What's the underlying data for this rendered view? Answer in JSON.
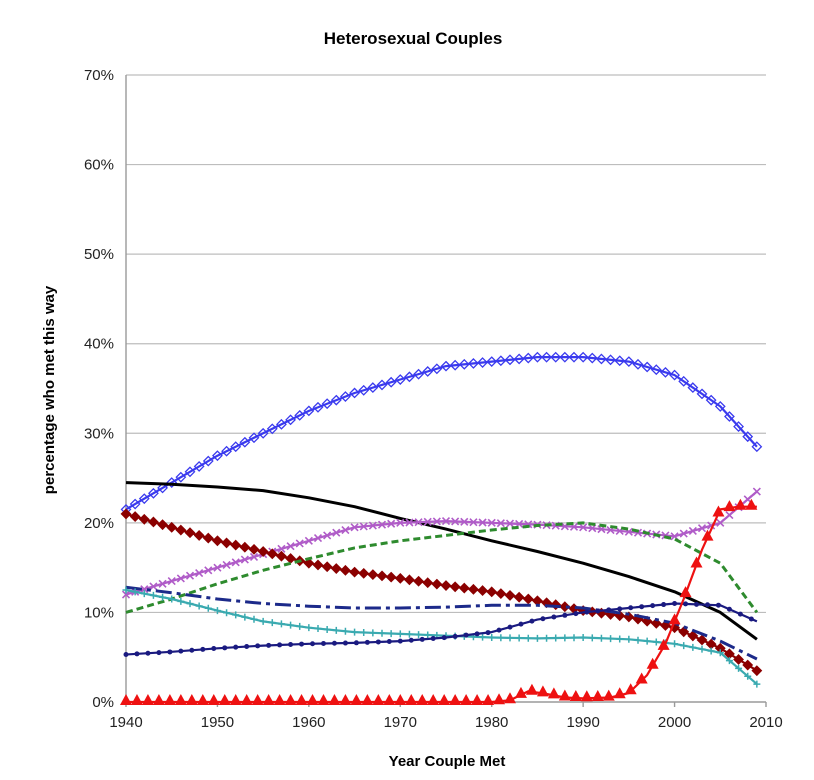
{
  "chart_data": {
    "type": "line",
    "title": "Heterosexual Couples",
    "xlabel": "Year Couple Met",
    "ylabel": "percentage who met this way",
    "xlim": [
      1940,
      2010
    ],
    "ylim": [
      0,
      70
    ],
    "xticks": [
      1940,
      1950,
      1960,
      1970,
      1980,
      1990,
      2000,
      2010
    ],
    "yticks": [
      0,
      10,
      20,
      30,
      40,
      50,
      60,
      70
    ],
    "ytick_labels": [
      "0%",
      "10%",
      "20%",
      "30%",
      "40%",
      "50%",
      "60%",
      "70%"
    ],
    "grid": true,
    "series": [
      {
        "id": "blue-diamond",
        "color": "#3a3aee",
        "style": "solid",
        "marker": "diamond",
        "x": [
          1940,
          1945,
          1950,
          1955,
          1960,
          1965,
          1970,
          1975,
          1980,
          1985,
          1990,
          1995,
          2000,
          2005,
          2009
        ],
        "y": [
          21.5,
          24.5,
          27.5,
          30.0,
          32.5,
          34.5,
          36.0,
          37.5,
          38.0,
          38.5,
          38.5,
          38.0,
          36.5,
          33.0,
          28.5
        ]
      },
      {
        "id": "black-solid",
        "color": "#000000",
        "style": "solid",
        "marker": "none",
        "x": [
          1940,
          1945,
          1950,
          1955,
          1960,
          1965,
          1970,
          1975,
          1980,
          1985,
          1990,
          1995,
          2000,
          2005,
          2009
        ],
        "y": [
          24.5,
          24.3,
          24.0,
          23.6,
          22.8,
          21.8,
          20.5,
          19.3,
          18.0,
          16.8,
          15.5,
          14.0,
          12.3,
          10.0,
          7.0
        ]
      },
      {
        "id": "magenta-x",
        "color": "#b05cc8",
        "style": "solid",
        "marker": "x",
        "x": [
          1940,
          1945,
          1950,
          1955,
          1960,
          1965,
          1970,
          1975,
          1980,
          1985,
          1990,
          1995,
          2000,
          2005,
          2009
        ],
        "y": [
          12.0,
          13.5,
          15.0,
          16.5,
          18.0,
          19.5,
          20.0,
          20.2,
          20.0,
          19.8,
          19.5,
          19.0,
          18.5,
          20.0,
          23.5
        ]
      },
      {
        "id": "dark-red-diamond",
        "color": "#8b0000",
        "style": "solid",
        "marker": "diamond",
        "x": [
          1940,
          1945,
          1950,
          1955,
          1960,
          1965,
          1970,
          1975,
          1980,
          1985,
          1990,
          1995,
          2000,
          2005,
          2009
        ],
        "y": [
          21.0,
          19.5,
          18.0,
          16.8,
          15.5,
          14.5,
          13.8,
          13.0,
          12.3,
          11.3,
          10.2,
          9.5,
          8.3,
          6.0,
          3.5
        ]
      },
      {
        "id": "green-dashed",
        "color": "#2e8b2e",
        "style": "dashed",
        "marker": "none",
        "x": [
          1940,
          1945,
          1950,
          1955,
          1960,
          1965,
          1970,
          1975,
          1980,
          1985,
          1990,
          1995,
          2000,
          2005,
          2009
        ],
        "y": [
          10.0,
          11.5,
          13.2,
          14.7,
          16.0,
          17.2,
          18.0,
          18.6,
          19.2,
          19.7,
          20.0,
          19.3,
          18.2,
          15.5,
          10.0
        ]
      },
      {
        "id": "navy-dashdot",
        "color": "#1c2a8a",
        "style": "dashdot",
        "marker": "none",
        "x": [
          1940,
          1945,
          1950,
          1955,
          1960,
          1965,
          1970,
          1975,
          1980,
          1985,
          1990,
          1995,
          2000,
          2005,
          2009
        ],
        "y": [
          12.8,
          12.2,
          11.5,
          11.0,
          10.7,
          10.5,
          10.5,
          10.6,
          10.8,
          10.8,
          10.5,
          9.8,
          8.8,
          6.8,
          4.8
        ]
      },
      {
        "id": "teal-plus",
        "color": "#3aaab0",
        "style": "solid",
        "marker": "plus",
        "x": [
          1940,
          1945,
          1950,
          1955,
          1960,
          1965,
          1970,
          1975,
          1980,
          1985,
          1990,
          1995,
          2000,
          2005,
          2009
        ],
        "y": [
          12.5,
          11.5,
          10.2,
          9.0,
          8.3,
          7.8,
          7.6,
          7.4,
          7.2,
          7.1,
          7.2,
          7.0,
          6.5,
          5.5,
          2.0
        ]
      },
      {
        "id": "navy-dot",
        "color": "#1a1a80",
        "style": "solid",
        "marker": "dot",
        "x": [
          1940,
          1945,
          1950,
          1955,
          1960,
          1965,
          1970,
          1975,
          1980,
          1985,
          1990,
          1995,
          2000,
          2005,
          2009
        ],
        "y": [
          5.3,
          5.6,
          6.0,
          6.3,
          6.5,
          6.6,
          6.8,
          7.2,
          7.8,
          9.2,
          10.0,
          10.5,
          11.0,
          10.8,
          9.0
        ]
      },
      {
        "id": "red-triangle",
        "color": "#ee1111",
        "style": "solid",
        "marker": "triangle",
        "x": [
          1940,
          1950,
          1960,
          1970,
          1980,
          1982,
          1984,
          1986,
          1988,
          1990,
          1993,
          1995,
          1997,
          1999,
          2001,
          2003,
          2005,
          2007,
          2009
        ],
        "y": [
          0.0,
          0.0,
          0.0,
          0.0,
          0.0,
          0.2,
          1.2,
          0.9,
          0.5,
          0.4,
          0.5,
          1.0,
          3.0,
          6.5,
          11.5,
          17.0,
          21.5,
          21.8,
          21.8
        ]
      }
    ]
  }
}
